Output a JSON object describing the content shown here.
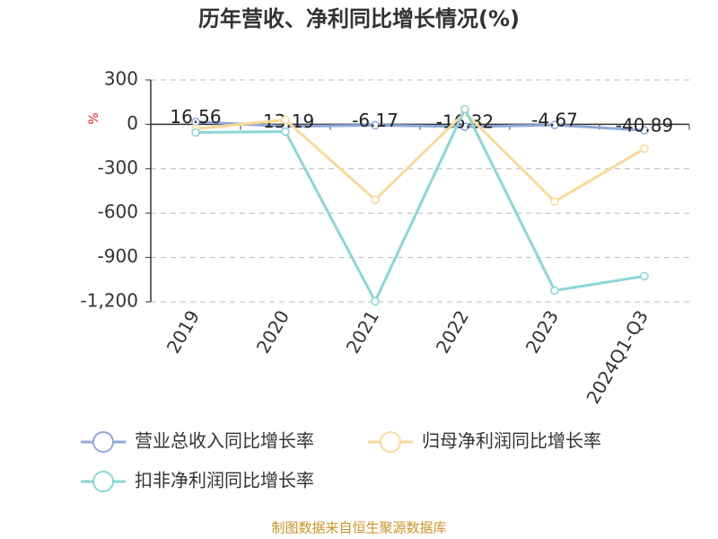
{
  "chart_data": {
    "type": "line",
    "title": "历年营收、净利同比增长情况(%)",
    "y_label": "%",
    "categories": [
      "2019",
      "2020",
      "2021",
      "2022",
      "2023",
      "2024Q1-Q3"
    ],
    "series": [
      {
        "name": "营业总收入同比增长率",
        "color": "#8fa8d8",
        "values": [
          16.56,
          -13.19,
          -6.17,
          -16.32,
          -4.67,
          -40.89
        ],
        "show_labels": true
      },
      {
        "name": "归母净利润同比增长率",
        "color": "#f9d99a",
        "values": [
          -30,
          30,
          -510,
          80,
          -522,
          -164
        ]
      },
      {
        "name": "扣非净利润同比增长率",
        "color": "#8dd5d6",
        "values": [
          -55,
          -49,
          -1196,
          103,
          -1124,
          -1026
        ]
      }
    ],
    "ylim": [
      -1200,
      300
    ],
    "yticks": [
      300,
      0,
      -300,
      -600,
      -900,
      {
        "value": -1200,
        "label": "-1,200"
      }
    ],
    "grid": true,
    "source": "制图数据来自恒生聚源数据库"
  }
}
